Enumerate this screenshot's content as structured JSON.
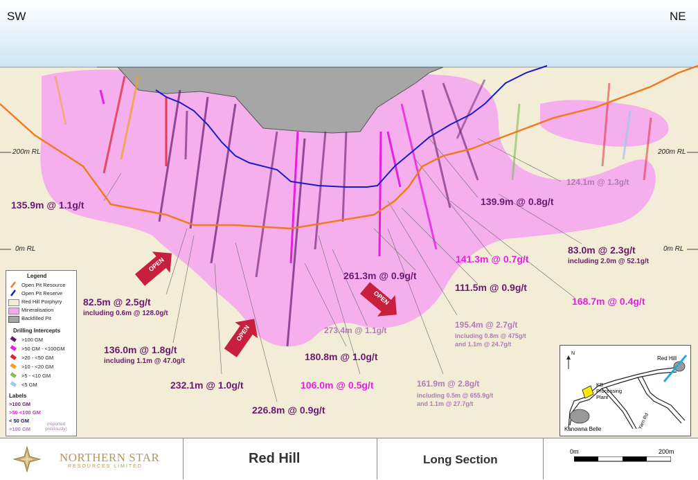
{
  "header": {
    "left": "SW",
    "right": "NE"
  },
  "rl_labels": {
    "rl200_left": "200m RL",
    "rl200_right": "200m RL",
    "rl0_left": "0m RL",
    "rl0_right": "0m RL"
  },
  "open_label": "OPEN",
  "intercepts": [
    {
      "id": "i1",
      "text": "135.9m @ 1.1g/t",
      "cls": "c100"
    },
    {
      "id": "i2",
      "text": "139.9m @ 0.8g/t",
      "cls": "c100"
    },
    {
      "id": "i3",
      "text": "124.1m @ 1.3g/t",
      "cls": "cprev"
    },
    {
      "id": "i4",
      "text": "83.0m @ 2.3g/t",
      "cls": "c100"
    },
    {
      "id": "i5",
      "text": "141.3m @ 0.7g/t",
      "cls": "c50"
    },
    {
      "id": "i6",
      "text": "261.3m @ 0.9g/t",
      "cls": "c100"
    },
    {
      "id": "i7",
      "text": "111.5m @ 0.9g/t",
      "cls": "c100"
    },
    {
      "id": "i8",
      "text": "168.7m @ 0.4g/t",
      "cls": "c50"
    },
    {
      "id": "i9",
      "text": "82.5m @ 2.5g/t",
      "cls": "c100"
    },
    {
      "id": "i10",
      "text": "195.4m @ 2.7g/t",
      "cls": "cprev"
    },
    {
      "id": "i11",
      "text": "273.4m @ 1.1g/t",
      "cls": "cprev"
    },
    {
      "id": "i12",
      "text": "136.0m @ 1.8g/t",
      "cls": "c100"
    },
    {
      "id": "i13",
      "text": "180.8m @ 1.0g/t",
      "cls": "c100"
    },
    {
      "id": "i14",
      "text": "232.1m @ 1.0g/t",
      "cls": "c100"
    },
    {
      "id": "i15",
      "text": "106.0m @ 0.5g/t",
      "cls": "c50"
    },
    {
      "id": "i16",
      "text": "161.9m @ 2.8g/t",
      "cls": "cprev"
    },
    {
      "id": "i17",
      "text": "226.8m @ 0.9g/t",
      "cls": "c100"
    }
  ],
  "sub_notes": {
    "i4": "including 2.0m @ 52.1g/t",
    "i9": "including 0.6m @ 128.0g/t",
    "i10_a": "including 0.8m @ 475g/t",
    "i10_b": "and 1.1m @ 24.7g/t",
    "i12": "including 1.1m @ 47.0g/t",
    "i16_a": "including 0.5m @ 655.9g/t",
    "i16_b": "and 1.1m @ 27.7g/t"
  },
  "legend": {
    "title": "Legend",
    "items": [
      "Open Pit Resource",
      "Open Pit Reserve",
      "Red Hill Porphyry",
      "Mineralisation",
      "Backfilled Pit"
    ],
    "intercepts_title": "Drilling Intercepts",
    "intercept_classes": [
      ">100 GM",
      ">50 GM - <100GM",
      ">20 - <50 GM",
      ">10 - <20 GM",
      ">5 - <10 GM",
      "<5 GM"
    ],
    "labels_title": "Labels",
    "label_classes": [
      ">100 GM",
      ">50 <100 GM",
      "< 50 GM",
      ">100 GM"
    ],
    "reported": "(reported previously)",
    "colors": {
      "resource": "#f07a1f",
      "reserve": "#1a1ac8",
      "porphyry": "#f3ecd7",
      "mineral": "#f5a8f0",
      "pit": "#a6a6a6",
      "gm100": "#6a1a6e",
      "gm50": "#e81fe0",
      "gm20": "#e5202a",
      "gm10": "#f5a020",
      "gm5": "#7cc04a",
      "gm0": "#9ec8ec"
    }
  },
  "inset": {
    "north": "N",
    "red_hill": "Red Hill",
    "kb_plant": "KB Processing Plant",
    "kanowna": "Kanowna Belle",
    "yarri": "Yarri Rd"
  },
  "footer": {
    "company": "NORTHERN STAR",
    "company_sub": "RESOURCES LIMITED",
    "title": "Red Hill",
    "section": "Long Section",
    "scale_start": "0m",
    "scale_end": "200m"
  }
}
